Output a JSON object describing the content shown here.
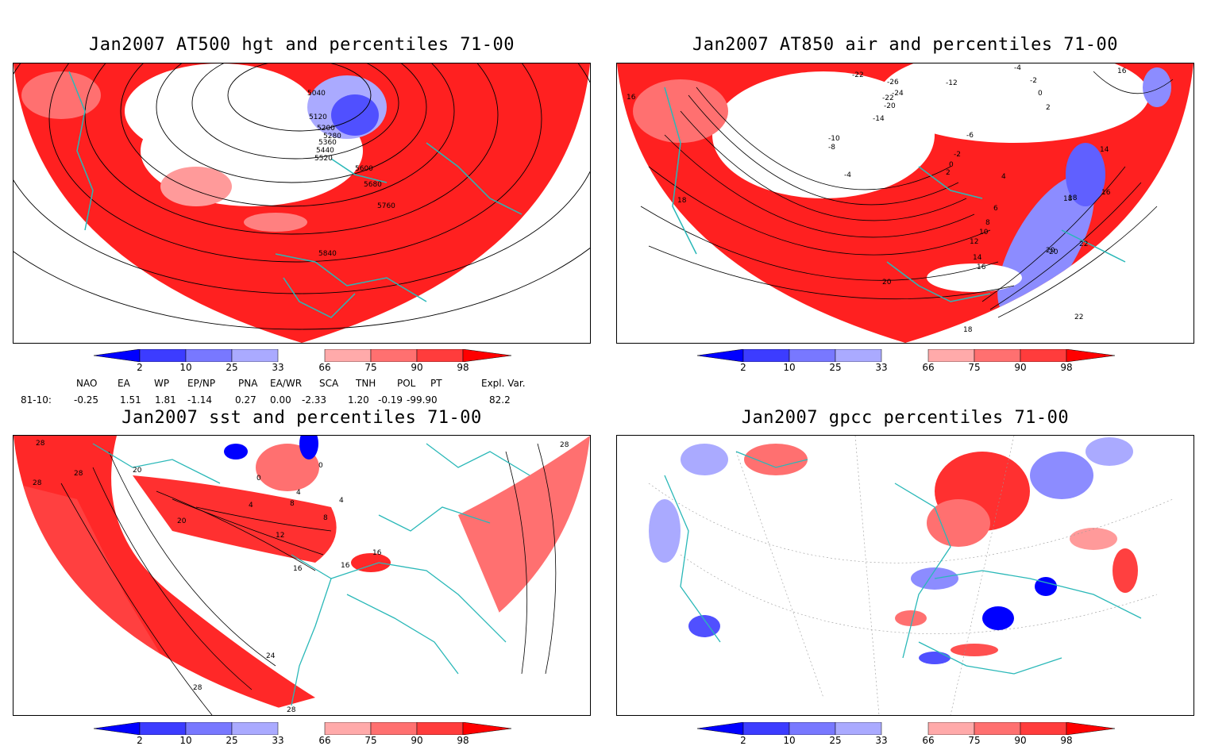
{
  "panels": [
    {
      "id": "hgt",
      "title": "Jan2007 AT500 hgt and percentiles 71-00",
      "contour_labels": [
        "5040",
        "5120",
        "5200",
        "5280",
        "5360",
        "5440",
        "5520",
        "5600",
        "5680",
        "5760",
        "5840"
      ]
    },
    {
      "id": "air",
      "title": "Jan2007 AT850 air and percentiles 71-00",
      "contour_labels": [
        "-22",
        "-26",
        "-24",
        "-20",
        "-22",
        "-12",
        "-14",
        "-10",
        "-8",
        "-6",
        "-4",
        "-2",
        "0",
        "2",
        "4",
        "6",
        "8",
        "10",
        "12",
        "14",
        "16",
        "18",
        "20",
        "22",
        "-4",
        "-2",
        "0",
        "2",
        "16",
        "14",
        "18",
        "16",
        "22",
        "20",
        "16",
        "18",
        "20",
        "18"
      ]
    },
    {
      "id": "sst",
      "title": "Jan2007 sst and percentiles 71-00",
      "contour_labels": [
        "28",
        "28",
        "20",
        "28",
        "28",
        "0",
        "0",
        "4",
        "4",
        "8",
        "4",
        "8",
        "20",
        "12",
        "16",
        "16",
        "16",
        "24",
        "28",
        "28"
      ]
    },
    {
      "id": "gpcc",
      "title": "Jan2007 gpcc percentiles 71-00",
      "contour_labels": []
    }
  ],
  "colorbar": {
    "ticks": [
      "2",
      "10",
      "25",
      "33",
      "66",
      "75",
      "90",
      "98"
    ],
    "colors": {
      "dark_blue": "#0000ff",
      "mid_blue": "#3c3cff",
      "light_blue": "#7878ff",
      "pale_blue": "#aaaaff",
      "pale_red": "#ffaaaa",
      "light_red": "#ff7070",
      "mid_red": "#ff3c3c",
      "dark_red": "#ff0000"
    }
  },
  "indices": {
    "headers": [
      "NAO",
      "EA",
      "WP",
      "EP/NP",
      "PNA",
      "EA/WR",
      "SCA",
      "TNH",
      "POL",
      "PT",
      "Expl. Var."
    ],
    "row_label": "81-10:",
    "values": [
      "-0.25",
      "1.51",
      "1.81",
      "-1.14",
      "0.27",
      "0.00",
      "-2.33",
      "1.20",
      "-0.19",
      "-99.90",
      "82.2"
    ]
  },
  "colors": {
    "coast": "#2ab8b8",
    "contour": "#000000"
  }
}
